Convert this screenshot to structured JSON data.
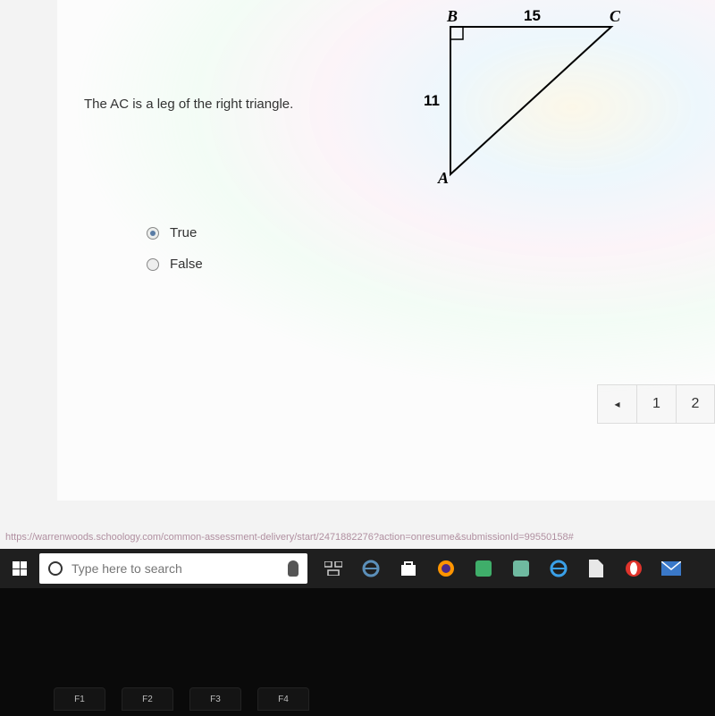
{
  "question": {
    "prompt": "The AC is a leg of the right triangle.",
    "options": [
      {
        "label": "True",
        "selected": true
      },
      {
        "label": "False",
        "selected": false
      }
    ]
  },
  "triangle": {
    "vertices": {
      "A": "A",
      "B": "B",
      "C": "C"
    },
    "side_BC_label": "15",
    "side_AB_label": "11",
    "points": {
      "B": [
        50,
        20
      ],
      "C": [
        230,
        20
      ],
      "A": [
        50,
        185
      ]
    },
    "stroke": "#000000",
    "stroke_width": 2,
    "right_angle_at": "B",
    "right_angle_size": 14
  },
  "pager": {
    "prev_glyph": "◂",
    "pages": [
      "1",
      "2"
    ]
  },
  "status_url": "https://warrenwoods.schoology.com/common-assessment-delivery/start/2471882276?action=onresume&submissionId=99550158#",
  "taskbar": {
    "search_placeholder": "Type here to search",
    "icons": [
      {
        "name": "task-view-icon",
        "color": "#cfcfcf"
      },
      {
        "name": "edge-legacy-icon",
        "color": "#5b8fb9"
      },
      {
        "name": "store-icon",
        "color": "#ffffff"
      },
      {
        "name": "firefox-icon",
        "color": "#ff9500"
      },
      {
        "name": "app-green-icon",
        "color": "#3fae6a"
      },
      {
        "name": "app-teal-icon",
        "color": "#6fb9a0"
      },
      {
        "name": "ie-icon",
        "color": "#3aa0e8"
      },
      {
        "name": "file-icon",
        "color": "#e8e8e8"
      },
      {
        "name": "opera-icon",
        "color": "#e0342c"
      },
      {
        "name": "mail-icon",
        "color": "#3a78c8"
      }
    ]
  },
  "fnkeys": [
    "F1",
    "F2",
    "F3",
    "F4"
  ]
}
